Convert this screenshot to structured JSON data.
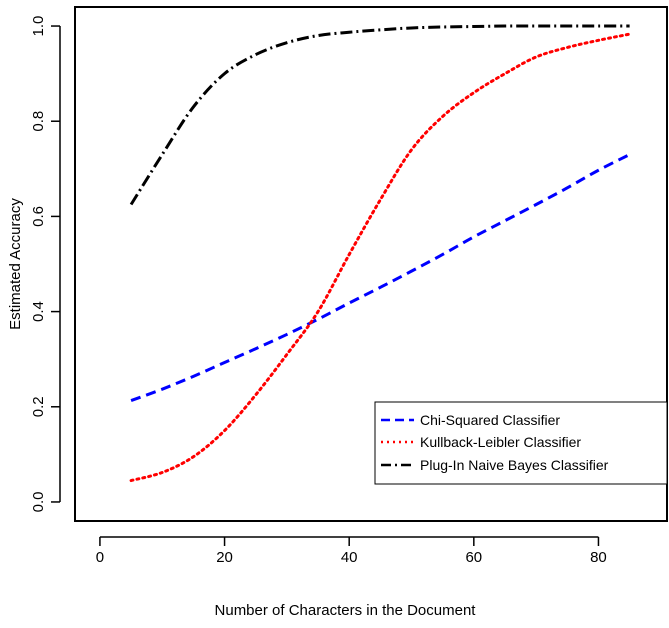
{
  "chart_data": {
    "type": "line",
    "title": "",
    "xlabel": "Number of Characters in the Document",
    "ylabel": "Estimated Accuracy",
    "xlim": [
      -4,
      91
    ],
    "ylim": [
      -0.04,
      1.04
    ],
    "x_ticks": [
      0,
      20,
      40,
      60,
      80
    ],
    "y_ticks": [
      0.0,
      0.2,
      0.4,
      0.6,
      0.8,
      1.0
    ],
    "x_tick_labels": [
      "0",
      "20",
      "40",
      "60",
      "80"
    ],
    "y_tick_labels": [
      "0.0",
      "0.2",
      "0.4",
      "0.6",
      "0.8",
      "1.0"
    ],
    "grid": false,
    "legend_position": "bottom-right",
    "series": [
      {
        "name": "Chi-Squared Classifier",
        "color": "#0000ff",
        "style": "dashed",
        "x": [
          5,
          10,
          15,
          20,
          25,
          30,
          35,
          40,
          45,
          50,
          55,
          60,
          65,
          70,
          75,
          80,
          85
        ],
        "y": [
          0.213,
          0.237,
          0.264,
          0.293,
          0.322,
          0.352,
          0.384,
          0.418,
          0.451,
          0.485,
          0.52,
          0.557,
          0.591,
          0.625,
          0.66,
          0.697,
          0.73
        ]
      },
      {
        "name": "Kullback-Leibler Classifier",
        "color": "#ff0000",
        "style": "dotted",
        "x": [
          5,
          10,
          15,
          20,
          25,
          30,
          35,
          40,
          45,
          50,
          55,
          60,
          65,
          70,
          75,
          80,
          85
        ],
        "y": [
          0.045,
          0.062,
          0.095,
          0.15,
          0.225,
          0.31,
          0.4,
          0.52,
          0.635,
          0.74,
          0.81,
          0.86,
          0.9,
          0.935,
          0.955,
          0.97,
          0.983
        ]
      },
      {
        "name": "Plug-In Naive Bayes Classifier",
        "color": "#000000",
        "style": "dashdot",
        "x": [
          5,
          10,
          15,
          20,
          25,
          30,
          35,
          40,
          45,
          50,
          55,
          60,
          65,
          70,
          75,
          80,
          85
        ],
        "y": [
          0.625,
          0.73,
          0.83,
          0.9,
          0.94,
          0.965,
          0.98,
          0.987,
          0.992,
          0.996,
          0.998,
          0.999,
          1.0,
          1.0,
          1.0,
          1.0,
          1.0
        ]
      }
    ]
  }
}
